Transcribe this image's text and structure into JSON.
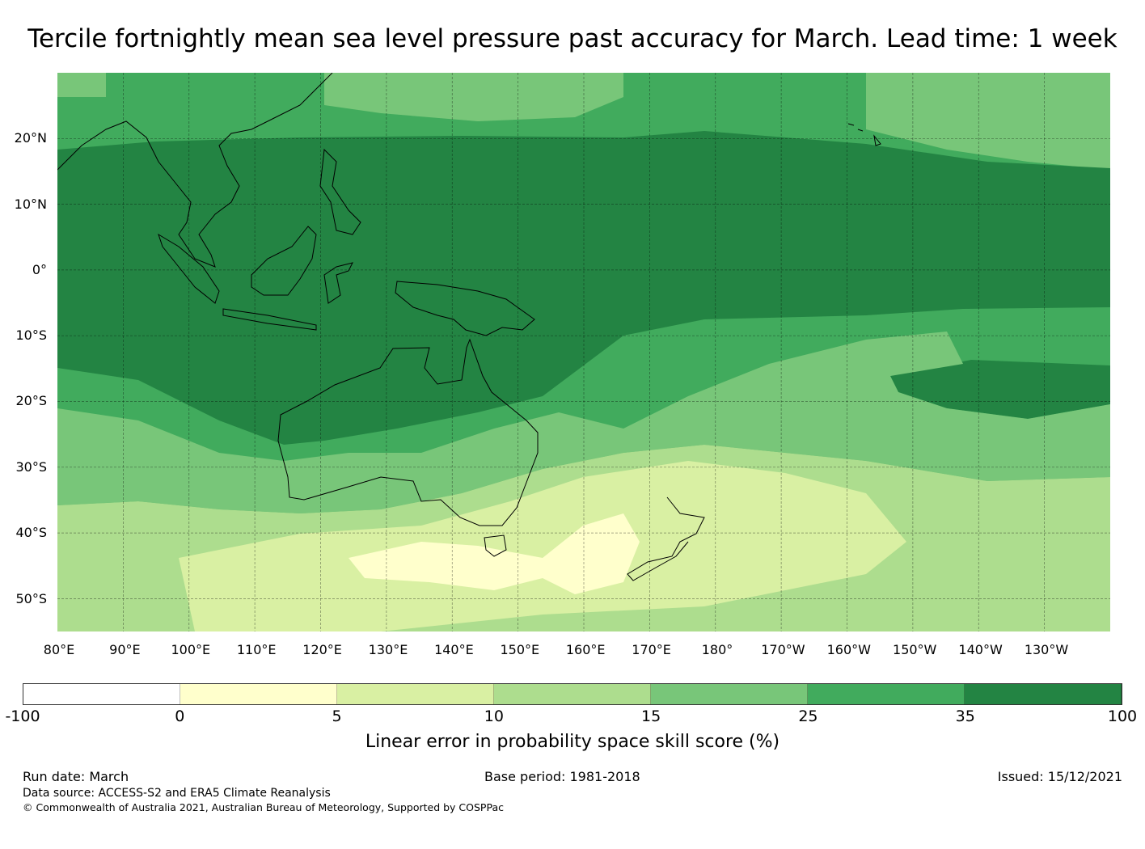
{
  "title": "Tercile fortnightly mean sea level pressure past accuracy for March. Lead time: 1 week",
  "map": {
    "lat_labels": [
      "20°N",
      "10°N",
      "0°",
      "10°S",
      "20°S",
      "30°S",
      "40°S",
      "50°S"
    ],
    "lon_labels": [
      "80°E",
      "90°E",
      "100°E",
      "110°E",
      "120°E",
      "130°E",
      "140°E",
      "150°E",
      "160°E",
      "170°E",
      "180°",
      "170°W",
      "160°W",
      "150°W",
      "140°W",
      "130°W"
    ],
    "extent": {
      "lon": [
        80,
        240
      ],
      "lat": [
        -55,
        30
      ]
    }
  },
  "colorbar": {
    "colors": [
      "#ffffff",
      "#ffffcc",
      "#d9f0a3",
      "#addd8e",
      "#78c679",
      "#41ab5d",
      "#238443"
    ],
    "ticks": [
      "-100",
      "0",
      "5",
      "10",
      "15",
      "25",
      "35",
      "100"
    ],
    "label": "Linear error in probability space skill score (%)"
  },
  "footer": {
    "run_date": "Run date: March",
    "base_period": "Base period: 1981-2018",
    "issued": "Issued: 15/12/2021",
    "data_source": "Data source: ACCESS-S2 and ERA5 Climate Reanalysis",
    "copyright": "© Commonwealth of Australia 2021, Australian Bureau of Meteorology, Supported by COSPPac"
  }
}
